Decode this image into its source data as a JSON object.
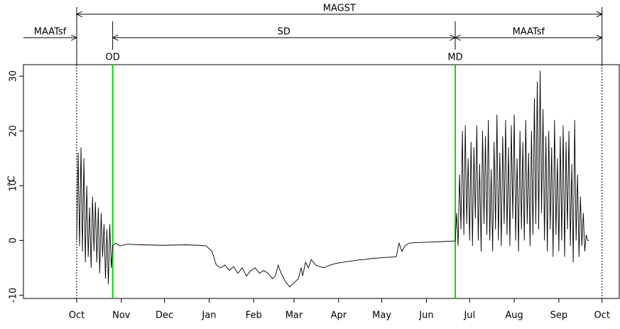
{
  "chart_data": {
    "type": "line",
    "y_label": "°C",
    "xlim": [
      -37,
      377
    ],
    "ylim": [
      -10.6,
      32.1
    ],
    "xticks": [
      {
        "value": 0,
        "label": "Oct"
      },
      {
        "value": 31,
        "label": "Nov"
      },
      {
        "value": 61,
        "label": "Dec"
      },
      {
        "value": 92,
        "label": "Jan"
      },
      {
        "value": 123,
        "label": "Feb"
      },
      {
        "value": 151,
        "label": "Mar"
      },
      {
        "value": 182,
        "label": "Apr"
      },
      {
        "value": 212,
        "label": "May"
      },
      {
        "value": 243,
        "label": "Jun"
      },
      {
        "value": 273,
        "label": "Jul"
      },
      {
        "value": 304,
        "label": "Aug"
      },
      {
        "value": 335,
        "label": "Sep"
      },
      {
        "value": 365,
        "label": "Oct"
      }
    ],
    "yticks": [
      -10,
      0,
      10,
      20,
      30
    ],
    "color": "#000000",
    "period": [
      0,
      365
    ],
    "markers": [
      {
        "label": "OD",
        "x": 25,
        "color": "#00dd00"
      },
      {
        "label": "MD",
        "x": 263,
        "color": "#00dd00"
      }
    ],
    "spans": [
      {
        "label": "MAGST",
        "from": 0,
        "to": 365,
        "row": 0
      },
      {
        "label": "MAATsf",
        "from": null,
        "to": 0,
        "row": 1
      },
      {
        "label": "SD",
        "from": 25,
        "to": 263,
        "row": 1
      },
      {
        "label": "MAATsf",
        "from": 263,
        "to": 365,
        "row": 1
      }
    ],
    "x": [
      0,
      1,
      2,
      3,
      4,
      5,
      6,
      7,
      8,
      9,
      10,
      11,
      12,
      13,
      14,
      15,
      16,
      17,
      18,
      19,
      20,
      21,
      22,
      23,
      24,
      25,
      27,
      30,
      35,
      45,
      60,
      75,
      85,
      90,
      92,
      94,
      97,
      100,
      103,
      106,
      109,
      112,
      115,
      118,
      121,
      124,
      127,
      130,
      133,
      136,
      138,
      140,
      142,
      145,
      148,
      150,
      152,
      154,
      156,
      157,
      159,
      161,
      163,
      166,
      169,
      172,
      175,
      180,
      185,
      190,
      195,
      200,
      205,
      210,
      215,
      222,
      224,
      226,
      228,
      231,
      236,
      245,
      255,
      263,
      264,
      265,
      266,
      267,
      268,
      269,
      270,
      271,
      272,
      273,
      274,
      275,
      276,
      277,
      278,
      279,
      280,
      281,
      282,
      283,
      284,
      285,
      286,
      287,
      288,
      289,
      290,
      291,
      292,
      293,
      294,
      295,
      296,
      297,
      298,
      299,
      300,
      301,
      302,
      303,
      304,
      305,
      306,
      307,
      308,
      309,
      310,
      311,
      312,
      313,
      314,
      315,
      316,
      317,
      318,
      319,
      320,
      321,
      322,
      323,
      324,
      325,
      326,
      327,
      328,
      329,
      330,
      331,
      332,
      333,
      334,
      335,
      336,
      337,
      338,
      339,
      340,
      341,
      342,
      343,
      344,
      345,
      346,
      347,
      348,
      349,
      350,
      351,
      352,
      353,
      354,
      355,
      356
    ],
    "values": [
      0,
      16,
      -1,
      17,
      -2,
      15,
      -4,
      10,
      -3,
      6,
      -5,
      8,
      -2,
      7,
      -4,
      6,
      -6,
      5,
      -3,
      3,
      -7,
      2,
      -8,
      3,
      -5,
      -1,
      -0.5,
      -1,
      -0.7,
      -0.8,
      -0.9,
      -0.8,
      -0.9,
      -1,
      -1.5,
      -2,
      -4.5,
      -5,
      -4.5,
      -5.5,
      -4.8,
      -6,
      -5,
      -6.5,
      -5.5,
      -5,
      -6,
      -5.5,
      -6,
      -7,
      -6.5,
      -4.5,
      -6,
      -7.5,
      -8.5,
      -8,
      -7.5,
      -7,
      -5,
      -6.5,
      -4,
      -5,
      -3.5,
      -4.5,
      -4.8,
      -5,
      -4.6,
      -4.2,
      -4,
      -3.8,
      -3.6,
      -3.5,
      -3.3,
      -3.2,
      -3.1,
      -3,
      -0.5,
      -2,
      -1,
      -0.5,
      -0.4,
      -0.3,
      -0.2,
      -0.1,
      5,
      -1,
      12,
      2,
      20,
      1,
      21,
      3,
      15,
      0,
      18,
      -1,
      17,
      4,
      21,
      0,
      14,
      -2,
      20,
      3,
      19,
      1,
      22,
      0,
      13,
      -2,
      18,
      2,
      23,
      0,
      16,
      -1,
      19,
      3,
      22,
      1,
      17,
      -1,
      21,
      4,
      23,
      0,
      15,
      -2,
      20,
      2,
      18,
      0,
      22,
      3,
      16,
      -1,
      20,
      1,
      26,
      3,
      29,
      2,
      31,
      5,
      24,
      0,
      19,
      -2,
      20,
      2,
      17,
      -3,
      22,
      1,
      15,
      -2,
      19,
      0,
      21,
      -3,
      18,
      2,
      20,
      -1,
      14,
      -4,
      22,
      0,
      12,
      -3,
      8,
      -1,
      5,
      -2,
      1,
      0,
      0
    ]
  }
}
